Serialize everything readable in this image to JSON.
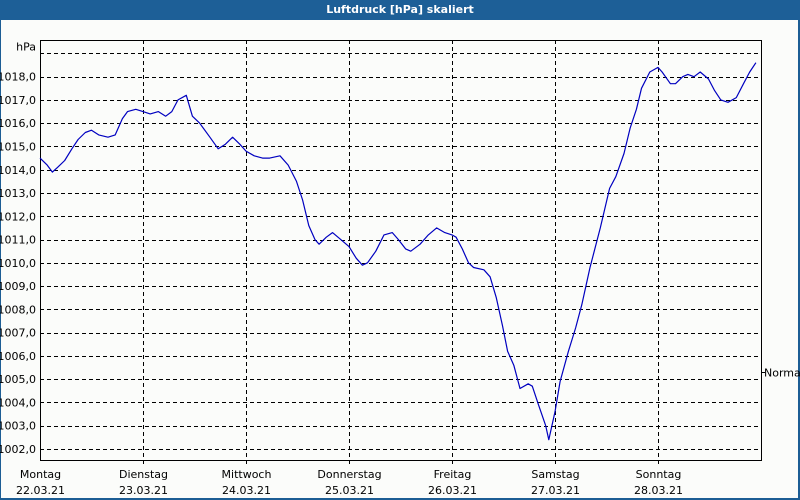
{
  "window": {
    "title": "Luftdruck [hPa] skaliert"
  },
  "chart_data": {
    "type": "line",
    "title": "Luftdruck [hPa] skaliert",
    "ylabel": "hPa",
    "xlabel": "",
    "ylim": [
      1001.5,
      1019.5
    ],
    "grid": true,
    "reference_marker": {
      "label": "Normal",
      "value": 1005.3
    },
    "y_ticks": [
      "1018,0",
      "1017,0",
      "1016,0",
      "1015,0",
      "1014,0",
      "1013,0",
      "1012,0",
      "1011,0",
      "1010,0",
      "1009,0",
      "1008,0",
      "1007,0",
      "1006,0",
      "1005,0",
      "1004,0",
      "1003,0",
      "1002,0"
    ],
    "x_ticks": [
      {
        "day": "Montag",
        "date": "22.03.21"
      },
      {
        "day": "Dienstag",
        "date": "23.03.21"
      },
      {
        "day": "Mittwoch",
        "date": "24.03.21"
      },
      {
        "day": "Donnerstag",
        "date": "25.03.21"
      },
      {
        "day": "Freitag",
        "date": "26.03.21"
      },
      {
        "day": "Samstag",
        "date": "27.03.21"
      },
      {
        "day": "Sonntag",
        "date": "28.03.21"
      }
    ],
    "series": [
      {
        "name": "Luftdruck",
        "color": "#0000c0",
        "x_days": [
          0.0,
          0.07,
          0.12,
          0.17,
          0.24,
          0.31,
          0.37,
          0.44,
          0.5,
          0.57,
          0.66,
          0.73,
          0.8,
          0.85,
          0.93,
          1.0,
          1.07,
          1.15,
          1.22,
          1.28,
          1.34,
          1.42,
          1.48,
          1.55,
          1.65,
          1.73,
          1.8,
          1.87,
          1.94,
          2.0,
          2.08,
          2.16,
          2.23,
          2.33,
          2.41,
          2.49,
          2.55,
          2.61,
          2.67,
          2.71,
          2.78,
          2.84,
          2.92,
          3.0,
          3.07,
          3.13,
          3.18,
          3.26,
          3.34,
          3.42,
          3.48,
          3.55,
          3.6,
          3.69,
          3.77,
          3.85,
          3.93,
          4.0,
          4.04,
          4.1,
          4.16,
          4.21,
          4.31,
          4.37,
          4.43,
          4.49,
          4.54,
          4.6,
          4.66,
          4.74,
          4.78,
          4.84,
          4.91,
          4.94,
          4.97,
          5.0,
          5.05,
          5.13,
          5.2,
          5.26,
          5.34,
          5.44,
          5.53,
          5.59,
          5.67,
          5.73,
          5.79,
          5.84,
          5.92,
          6.0,
          6.04,
          6.12,
          6.17,
          6.24,
          6.29,
          6.35,
          6.41,
          6.49,
          6.55,
          6.61,
          6.68,
          6.76,
          6.83,
          6.89,
          6.95
        ],
        "values": [
          1014.5,
          1014.2,
          1013.9,
          1014.1,
          1014.4,
          1014.9,
          1015.3,
          1015.6,
          1015.7,
          1015.5,
          1015.4,
          1015.5,
          1016.2,
          1016.5,
          1016.6,
          1016.5,
          1016.4,
          1016.5,
          1016.3,
          1016.5,
          1017.0,
          1017.2,
          1016.3,
          1016.0,
          1015.4,
          1014.9,
          1015.1,
          1015.4,
          1015.1,
          1014.8,
          1014.6,
          1014.5,
          1014.5,
          1014.6,
          1014.2,
          1013.5,
          1012.7,
          1011.6,
          1011.0,
          1010.8,
          1011.1,
          1011.3,
          1011.0,
          1010.7,
          1010.2,
          1009.9,
          1010.0,
          1010.5,
          1011.2,
          1011.3,
          1011.0,
          1010.6,
          1010.5,
          1010.8,
          1011.2,
          1011.5,
          1011.3,
          1011.2,
          1011.1,
          1010.6,
          1010.0,
          1009.8,
          1009.7,
          1009.4,
          1008.5,
          1007.3,
          1006.2,
          1005.6,
          1004.6,
          1004.8,
          1004.7,
          1003.9,
          1003.0,
          1002.4,
          1003.0,
          1003.6,
          1004.9,
          1006.2,
          1007.2,
          1008.2,
          1009.8,
          1011.5,
          1013.2,
          1013.7,
          1014.7,
          1015.8,
          1016.6,
          1017.5,
          1018.2,
          1018.4,
          1018.2,
          1017.7,
          1017.7,
          1018.0,
          1018.1,
          1018.0,
          1018.2,
          1017.9,
          1017.4,
          1017.0,
          1016.9,
          1017.1,
          1017.7,
          1018.2,
          1018.6
        ]
      }
    ]
  }
}
